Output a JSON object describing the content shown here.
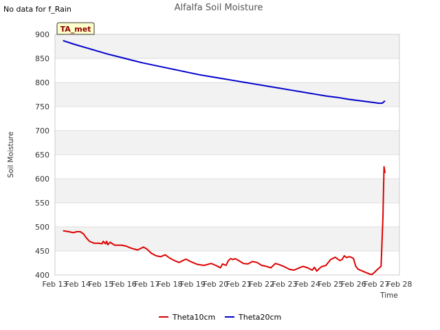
{
  "notice": "No data for f_Rain",
  "badge": "TA_met",
  "colors": {
    "band": "#f2f2f2",
    "grid": "#dddddd",
    "badge_fill": "#ffffcc",
    "badge_text": "#8b0000"
  },
  "chart_data": {
    "type": "line",
    "title": "Alfalfa Soil Moisture",
    "xlabel": "Time",
    "ylabel": "Soil Moisture",
    "xlim": [
      13,
      28
    ],
    "ylim": [
      400,
      900
    ],
    "x_ticks": [
      13,
      14,
      15,
      16,
      17,
      18,
      19,
      20,
      21,
      22,
      23,
      24,
      25,
      26,
      27,
      28
    ],
    "x_tick_labels": [
      "Feb 13",
      "Feb 14",
      "Feb 15",
      "Feb 16",
      "Feb 17",
      "Feb 18",
      "Feb 19",
      "Feb 20",
      "Feb 21",
      "Feb 22",
      "Feb 23",
      "Feb 24",
      "Feb 25",
      "Feb 26",
      "Feb 27",
      "Feb 28"
    ],
    "y_ticks": [
      400,
      450,
      500,
      550,
      600,
      650,
      700,
      750,
      800,
      850,
      900
    ],
    "grid": true,
    "legend_position": "bottom-center",
    "series": [
      {
        "name": "Theta10cm",
        "color": "#dd0000",
        "x": [
          13.35,
          13.6,
          13.8,
          13.95,
          14.1,
          14.25,
          14.35,
          14.5,
          14.7,
          14.9,
          15.05,
          15.1,
          15.2,
          15.25,
          15.3,
          15.4,
          15.6,
          15.9,
          16.1,
          16.3,
          16.6,
          16.85,
          17.0,
          17.2,
          17.4,
          17.6,
          17.8,
          18.0,
          18.2,
          18.4,
          18.7,
          18.9,
          19.2,
          19.5,
          19.8,
          20.0,
          20.2,
          20.3,
          20.45,
          20.55,
          20.65,
          20.75,
          20.85,
          21.0,
          21.2,
          21.4,
          21.6,
          21.8,
          22.0,
          22.2,
          22.4,
          22.6,
          22.8,
          23.0,
          23.2,
          23.4,
          23.6,
          23.8,
          24.0,
          24.2,
          24.3,
          24.4,
          24.5,
          24.6,
          24.8,
          25.0,
          25.2,
          25.4,
          25.5,
          25.6,
          25.7,
          25.8,
          25.9,
          26.0,
          26.1,
          26.2,
          26.4,
          26.6,
          26.7,
          26.8,
          26.9,
          27.05,
          27.2,
          27.28,
          27.33,
          27.37
        ],
        "values": [
          492,
          490,
          488,
          490,
          490,
          485,
          478,
          470,
          466,
          466,
          465,
          470,
          465,
          470,
          463,
          468,
          462,
          462,
          460,
          456,
          452,
          458,
          454,
          445,
          440,
          438,
          442,
          435,
          430,
          426,
          433,
          428,
          422,
          420,
          424,
          420,
          415,
          423,
          420,
          430,
          434,
          432,
          434,
          430,
          424,
          423,
          428,
          426,
          420,
          418,
          415,
          424,
          421,
          417,
          412,
          410,
          414,
          418,
          415,
          410,
          416,
          408,
          413,
          417,
          420,
          432,
          437,
          430,
          432,
          440,
          436,
          438,
          437,
          434,
          418,
          412,
          408,
          404,
          402,
          401,
          405,
          412,
          418,
          520,
          625,
          612
        ]
      },
      {
        "name": "Theta20cm",
        "color": "#0000cc",
        "x": [
          13.35,
          13.8,
          14.3,
          14.8,
          15.3,
          15.8,
          16.3,
          16.8,
          17.3,
          17.8,
          18.3,
          18.8,
          19.3,
          19.8,
          20.3,
          20.8,
          21.3,
          21.8,
          22.3,
          22.8,
          23.3,
          23.8,
          24.3,
          24.8,
          25.3,
          25.8,
          26.3,
          26.8,
          27.1,
          27.25,
          27.37
        ],
        "values": [
          887,
          880,
          873,
          866,
          859,
          853,
          847,
          841,
          836,
          831,
          826,
          821,
          816,
          812,
          808,
          804,
          800,
          796,
          792,
          788,
          784,
          780,
          776,
          772,
          769,
          765,
          762,
          759,
          757,
          757,
          762
        ]
      }
    ]
  }
}
